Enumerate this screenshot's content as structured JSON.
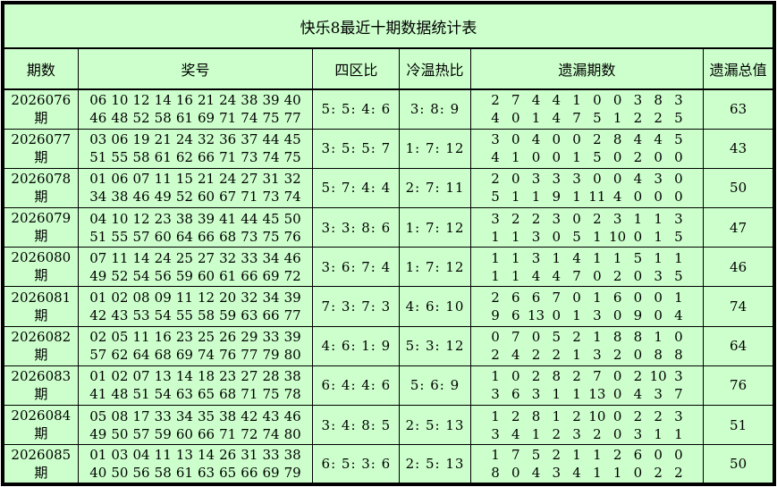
{
  "title": "快乐8最近十期数据统计表",
  "colors": {
    "background": "#ccffcc",
    "grid": "#000000",
    "text": "#000000"
  },
  "table": {
    "headers": [
      "期数",
      "奖号",
      "四区比",
      "冷温热比",
      "遗漏期数",
      "遗漏总值"
    ],
    "rows": [
      {
        "period": "2026076期",
        "numbers": [
          [
            "06",
            "10",
            "12",
            "14",
            "16",
            "21",
            "24",
            "38",
            "39",
            "40"
          ],
          [
            "46",
            "48",
            "52",
            "58",
            "61",
            "69",
            "71",
            "74",
            "75",
            "77"
          ]
        ],
        "zone_ratio": "5: 5: 4: 6",
        "cold_warm_hot": "3: 8: 9",
        "miss_periods": [
          [
            "2",
            "7",
            "4",
            "4",
            "1",
            "0",
            "0",
            "3",
            "8",
            "3"
          ],
          [
            "4",
            "0",
            "1",
            "4",
            "7",
            "5",
            "1",
            "2",
            "2",
            "5"
          ]
        ],
        "miss_total": "63"
      },
      {
        "period": "2026077期",
        "numbers": [
          [
            "03",
            "06",
            "19",
            "21",
            "24",
            "32",
            "36",
            "37",
            "44",
            "45"
          ],
          [
            "51",
            "55",
            "58",
            "61",
            "62",
            "66",
            "71",
            "73",
            "74",
            "75"
          ]
        ],
        "zone_ratio": "3: 5: 5: 7",
        "cold_warm_hot": "1: 7: 12",
        "miss_periods": [
          [
            "3",
            "0",
            "4",
            "0",
            "0",
            "2",
            "8",
            "4",
            "4",
            "5"
          ],
          [
            "4",
            "1",
            "0",
            "0",
            "1",
            "5",
            "0",
            "2",
            "0",
            "0"
          ]
        ],
        "miss_total": "43"
      },
      {
        "period": "2026078期",
        "numbers": [
          [
            "01",
            "06",
            "07",
            "11",
            "15",
            "21",
            "24",
            "27",
            "31",
            "32"
          ],
          [
            "34",
            "38",
            "46",
            "49",
            "52",
            "60",
            "67",
            "71",
            "73",
            "74"
          ]
        ],
        "zone_ratio": "5: 7: 4: 4",
        "cold_warm_hot": "2: 7: 11",
        "miss_periods": [
          [
            "2",
            "0",
            "3",
            "3",
            "3",
            "0",
            "0",
            "4",
            "3",
            "0"
          ],
          [
            "5",
            "1",
            "1",
            "9",
            "1",
            "11",
            "4",
            "0",
            "0",
            "0"
          ]
        ],
        "miss_total": "50"
      },
      {
        "period": "2026079期",
        "numbers": [
          [
            "04",
            "10",
            "12",
            "23",
            "38",
            "39",
            "41",
            "44",
            "45",
            "50"
          ],
          [
            "51",
            "55",
            "57",
            "60",
            "64",
            "66",
            "68",
            "73",
            "75",
            "76"
          ]
        ],
        "zone_ratio": "3: 3: 8: 6",
        "cold_warm_hot": "1: 7: 12",
        "miss_periods": [
          [
            "3",
            "2",
            "2",
            "3",
            "0",
            "2",
            "3",
            "1",
            "1",
            "3"
          ],
          [
            "1",
            "1",
            "3",
            "0",
            "5",
            "1",
            "10",
            "0",
            "1",
            "5"
          ]
        ],
        "miss_total": "47"
      },
      {
        "period": "2026080期",
        "numbers": [
          [
            "07",
            "11",
            "14",
            "24",
            "25",
            "27",
            "32",
            "33",
            "34",
            "46"
          ],
          [
            "49",
            "52",
            "54",
            "56",
            "59",
            "60",
            "61",
            "66",
            "69",
            "72"
          ]
        ],
        "zone_ratio": "3: 6: 7: 4",
        "cold_warm_hot": "1: 7: 12",
        "miss_periods": [
          [
            "1",
            "1",
            "3",
            "1",
            "4",
            "1",
            "1",
            "5",
            "1",
            "1"
          ],
          [
            "1",
            "1",
            "4",
            "4",
            "7",
            "0",
            "2",
            "0",
            "3",
            "5"
          ]
        ],
        "miss_total": "46"
      },
      {
        "period": "2026081期",
        "numbers": [
          [
            "01",
            "02",
            "08",
            "09",
            "11",
            "12",
            "20",
            "32",
            "34",
            "39"
          ],
          [
            "42",
            "43",
            "53",
            "54",
            "55",
            "58",
            "59",
            "63",
            "66",
            "77"
          ]
        ],
        "zone_ratio": "7: 3: 7: 3",
        "cold_warm_hot": "4: 6: 10",
        "miss_periods": [
          [
            "2",
            "6",
            "6",
            "7",
            "0",
            "1",
            "6",
            "0",
            "0",
            "1"
          ],
          [
            "9",
            "6",
            "13",
            "0",
            "1",
            "3",
            "0",
            "9",
            "0",
            "4"
          ]
        ],
        "miss_total": "74"
      },
      {
        "period": "2026082期",
        "numbers": [
          [
            "02",
            "05",
            "11",
            "16",
            "23",
            "25",
            "26",
            "29",
            "33",
            "39"
          ],
          [
            "57",
            "62",
            "64",
            "68",
            "69",
            "74",
            "76",
            "77",
            "79",
            "80"
          ]
        ],
        "zone_ratio": "4: 6: 1: 9",
        "cold_warm_hot": "5: 3: 12",
        "miss_periods": [
          [
            "0",
            "7",
            "0",
            "5",
            "2",
            "1",
            "8",
            "8",
            "1",
            "0"
          ],
          [
            "2",
            "4",
            "2",
            "2",
            "1",
            "3",
            "2",
            "0",
            "8",
            "8"
          ]
        ],
        "miss_total": "64"
      },
      {
        "period": "2026083期",
        "numbers": [
          [
            "01",
            "02",
            "07",
            "13",
            "14",
            "18",
            "23",
            "27",
            "28",
            "38"
          ],
          [
            "41",
            "48",
            "51",
            "54",
            "63",
            "65",
            "68",
            "71",
            "75",
            "78"
          ]
        ],
        "zone_ratio": "6: 4: 4: 6",
        "cold_warm_hot": "5: 6: 9",
        "miss_periods": [
          [
            "1",
            "0",
            "2",
            "8",
            "2",
            "7",
            "0",
            "2",
            "10",
            "3"
          ],
          [
            "3",
            "6",
            "3",
            "1",
            "1",
            "13",
            "0",
            "4",
            "3",
            "7"
          ]
        ],
        "miss_total": "76"
      },
      {
        "period": "2026084期",
        "numbers": [
          [
            "05",
            "08",
            "17",
            "33",
            "34",
            "35",
            "38",
            "42",
            "43",
            "46"
          ],
          [
            "49",
            "50",
            "57",
            "59",
            "60",
            "66",
            "71",
            "72",
            "74",
            "80"
          ]
        ],
        "zone_ratio": "3: 4: 8: 5",
        "cold_warm_hot": "2: 5: 13",
        "miss_periods": [
          [
            "1",
            "2",
            "8",
            "1",
            "2",
            "10",
            "0",
            "2",
            "2",
            "3"
          ],
          [
            "3",
            "4",
            "1",
            "2",
            "3",
            "2",
            "0",
            "3",
            "1",
            "1"
          ]
        ],
        "miss_total": "51"
      },
      {
        "period": "2026085期",
        "numbers": [
          [
            "01",
            "03",
            "04",
            "11",
            "13",
            "14",
            "26",
            "31",
            "33",
            "38"
          ],
          [
            "40",
            "50",
            "56",
            "58",
            "61",
            "63",
            "65",
            "66",
            "69",
            "79"
          ]
        ],
        "zone_ratio": "6: 5: 3: 6",
        "cold_warm_hot": "2: 5: 13",
        "miss_periods": [
          [
            "1",
            "7",
            "5",
            "2",
            "1",
            "1",
            "2",
            "6",
            "0",
            "0"
          ],
          [
            "8",
            "0",
            "4",
            "3",
            "4",
            "1",
            "1",
            "0",
            "2",
            "2"
          ]
        ],
        "miss_total": "50"
      }
    ]
  }
}
